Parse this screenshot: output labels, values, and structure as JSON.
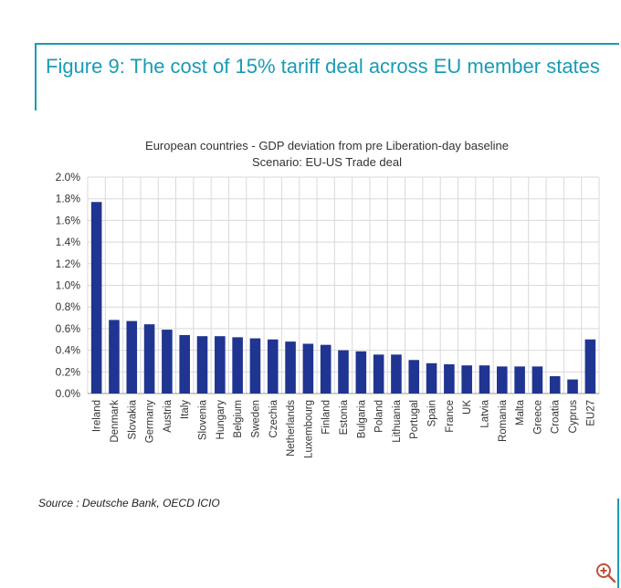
{
  "figure": {
    "title": "Figure 9: The cost of 15% tariff deal across EU member states",
    "source": "Source : Deutsche Bank, OECD ICIO"
  },
  "colors": {
    "accent": "#1a9bb5",
    "bar": "#1f3591",
    "grid": "#d9d9d9"
  },
  "chart_data": {
    "type": "bar",
    "title": "European countries - GDP deviation from pre Liberation-day baseline",
    "subtitle": "Scenario: EU-US Trade deal",
    "xlabel": "",
    "ylabel": "",
    "ylim": [
      0,
      2.0
    ],
    "yticks": [
      "0.0%",
      "0.2%",
      "0.4%",
      "0.6%",
      "0.8%",
      "1.0%",
      "1.2%",
      "1.4%",
      "1.6%",
      "1.8%",
      "2.0%"
    ],
    "grid": true,
    "legend": "none",
    "categories": [
      "Ireland",
      "Denmark",
      "Slovakia",
      "Germany",
      "Austria",
      "Italy",
      "Slovenia",
      "Hungary",
      "Belgium",
      "Sweden",
      "Czechia",
      "Netherlands",
      "Luxembourg",
      "Finland",
      "Estonia",
      "Bulgaria",
      "Poland",
      "Lithuania",
      "Portugal",
      "Spain",
      "France",
      "UK",
      "Latvia",
      "Romania",
      "Malta",
      "Greece",
      "Croatia",
      "Cyprus",
      "EU27"
    ],
    "series": [
      {
        "name": "GDP deviation (%)",
        "values": [
          1.77,
          0.68,
          0.67,
          0.64,
          0.59,
          0.54,
          0.53,
          0.53,
          0.52,
          0.51,
          0.5,
          0.48,
          0.46,
          0.45,
          0.4,
          0.39,
          0.36,
          0.36,
          0.31,
          0.28,
          0.27,
          0.26,
          0.26,
          0.25,
          0.25,
          0.25,
          0.16,
          0.13,
          0.5
        ]
      }
    ]
  }
}
